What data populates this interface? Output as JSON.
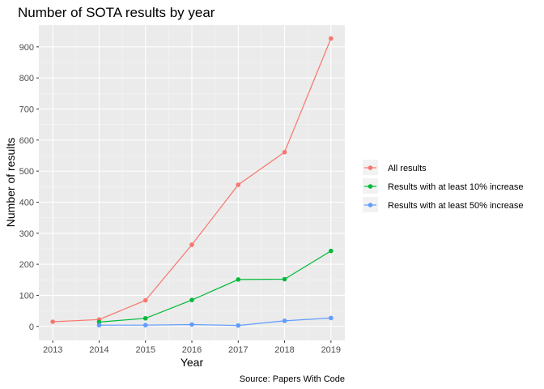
{
  "chart_data": {
    "type": "line",
    "title": "Number of SOTA results by year",
    "xlabel": "Year",
    "ylabel": "Number of results",
    "caption": "Source: Papers With Code",
    "x": [
      2013,
      2014,
      2015,
      2016,
      2017,
      2018,
      2019
    ],
    "xlim": [
      2012.7,
      2019.3
    ],
    "ylim": [
      -45,
      970
    ],
    "yticks": [
      0,
      100,
      200,
      300,
      400,
      500,
      600,
      700,
      800,
      900
    ],
    "grid": true,
    "legend_position": "right",
    "panel_background": "#ebebeb",
    "series": [
      {
        "name": "All results",
        "color": "#f8766d",
        "points": [
          {
            "x": 2013,
            "y": 15
          },
          {
            "x": 2014,
            "y": 22
          },
          {
            "x": 2015,
            "y": 84
          },
          {
            "x": 2016,
            "y": 263
          },
          {
            "x": 2017,
            "y": 456
          },
          {
            "x": 2018,
            "y": 561
          },
          {
            "x": 2019,
            "y": 927
          }
        ]
      },
      {
        "name": "Results with at least 10% increase",
        "color": "#00ba38",
        "points": [
          {
            "x": 2014,
            "y": 14
          },
          {
            "x": 2015,
            "y": 26
          },
          {
            "x": 2016,
            "y": 85
          },
          {
            "x": 2017,
            "y": 151
          },
          {
            "x": 2018,
            "y": 152
          },
          {
            "x": 2019,
            "y": 243
          }
        ]
      },
      {
        "name": "Results with at least 50% increase",
        "color": "#619cff",
        "points": [
          {
            "x": 2014,
            "y": 4
          },
          {
            "x": 2015,
            "y": 4
          },
          {
            "x": 2016,
            "y": 6
          },
          {
            "x": 2017,
            "y": 3
          },
          {
            "x": 2018,
            "y": 18
          },
          {
            "x": 2019,
            "y": 27
          }
        ]
      }
    ]
  }
}
